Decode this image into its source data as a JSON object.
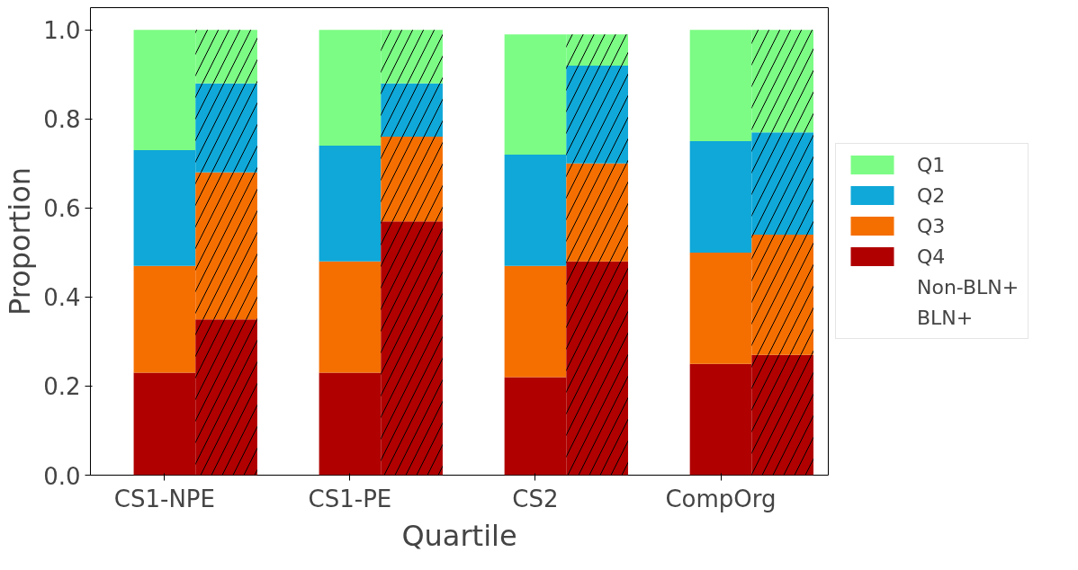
{
  "chart_data": {
    "type": "bar",
    "stacked": true,
    "xlabel": "Quartile",
    "ylabel": "Proportion",
    "annotations": [
      "Non-BLN+",
      "BLN+"
    ],
    "categories": [
      "CS1-NPE",
      null,
      "CS1-PE",
      null,
      "CS2",
      null,
      "CompOrg",
      null
    ],
    "series": [
      {
        "name": "Q4",
        "color": "#b00000",
        "values": [
          0.23,
          null,
          0.23,
          null,
          0.22,
          null,
          0.25,
          null
        ]
      },
      {
        "name": "Q3",
        "color": "#f56f00",
        "values": [
          0.24,
          null,
          0.25,
          null,
          0.25,
          null,
          0.25,
          null
        ]
      },
      {
        "name": "Q2",
        "color": "#0fa8d8",
        "values": [
          0.26,
          null,
          0.26,
          null,
          0.25,
          null,
          0.25,
          null
        ]
      },
      {
        "name": "Q1",
        "color": "#7cfc85",
        "values": [
          0.27,
          null,
          0.26,
          null,
          0.27,
          null,
          0.25,
          null
        ]
      },
      {
        "color": "#b00000",
        "values": [
          null,
          0.35,
          null,
          0.57,
          null,
          0.48,
          null,
          0.27
        ]
      },
      {
        "color": "#f56f00",
        "values": [
          null,
          0.33,
          null,
          0.19,
          null,
          0.22,
          null,
          0.27
        ]
      },
      {
        "color": "#0fa8d8",
        "values": [
          null,
          0.2,
          null,
          0.12,
          null,
          0.22,
          null,
          0.23
        ]
      },
      {
        "color": "#7cfc85",
        "values": [
          null,
          0.12,
          null,
          0.12,
          null,
          0.07,
          null,
          0.23
        ]
      }
    ],
    "ylim": [
      0,
      1.05
    ],
    "yticks": [
      {
        "value": 0,
        "label": "0.0"
      },
      {
        "value": 0.2,
        "label": "0.2"
      },
      {
        "value": 0.4,
        "label": "0.4"
      },
      {
        "value": 0.6,
        "label": "0.6"
      },
      {
        "value": 0.8,
        "label": "0.8"
      },
      {
        "value": 1.0,
        "label": "1.0"
      }
    ],
    "grid": false,
    "legend": "right"
  }
}
